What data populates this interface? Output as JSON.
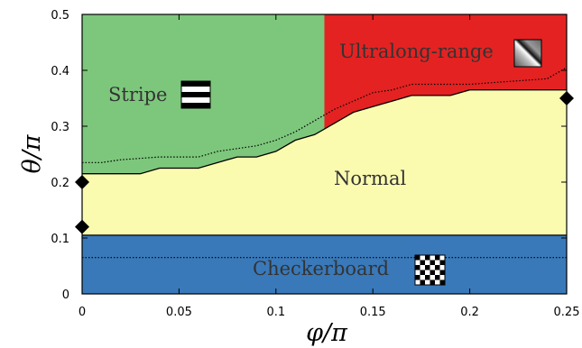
{
  "chart_data": {
    "type": "area",
    "xlabel": "φ/π",
    "ylabel": "θ/π",
    "xlim": [
      0,
      0.25
    ],
    "ylim": [
      0,
      0.5
    ],
    "x_ticks": [
      "0",
      "0.05",
      "0.1",
      "0.15",
      "0.2",
      "0.25"
    ],
    "y_ticks": [
      "0",
      "0.1",
      "0.2",
      "0.3",
      "0.4",
      "0.5"
    ],
    "x_tick_values": [
      0,
      0.05,
      0.1,
      0.15,
      0.2,
      0.25
    ],
    "y_tick_values": [
      0,
      0.1,
      0.2,
      0.3,
      0.4,
      0.5
    ],
    "grid": false,
    "colors": {
      "stripe": "#7dc77c",
      "ultralong": "#e42222",
      "normal": "#fbfbb0",
      "checkerboard": "#3979b9"
    },
    "regions": [
      {
        "label": "Stripe",
        "color_key": "stripe",
        "icon": "stripe-pattern-icon"
      },
      {
        "label": "Ultralong-range",
        "color_key": "ultralong",
        "icon": "diagonal-gradient-icon"
      },
      {
        "label": "Normal",
        "color_key": "normal"
      },
      {
        "label": "Checkerboard",
        "color_key": "checkerboard",
        "icon": "checkerboard-icon"
      }
    ],
    "checkerboard_boundary": 0.105,
    "stripe_ultralong_boundary_x": 0.125,
    "normal_upper_boundary": {
      "x": [
        0,
        0.03,
        0.04,
        0.06,
        0.08,
        0.09,
        0.1,
        0.11,
        0.12,
        0.13,
        0.14,
        0.15,
        0.16,
        0.17,
        0.19,
        0.2,
        0.25
      ],
      "y": [
        0.215,
        0.215,
        0.225,
        0.225,
        0.245,
        0.245,
        0.255,
        0.275,
        0.285,
        0.305,
        0.325,
        0.335,
        0.345,
        0.355,
        0.355,
        0.365,
        0.365
      ]
    },
    "dotted_upper": {
      "x": [
        0,
        0.01,
        0.02,
        0.04,
        0.06,
        0.07,
        0.09,
        0.1,
        0.11,
        0.12,
        0.13,
        0.14,
        0.15,
        0.16,
        0.17,
        0.2,
        0.24,
        0.25
      ],
      "y": [
        0.235,
        0.235,
        0.24,
        0.245,
        0.245,
        0.255,
        0.265,
        0.275,
        0.29,
        0.31,
        0.33,
        0.345,
        0.36,
        0.365,
        0.375,
        0.375,
        0.385,
        0.405
      ]
    },
    "dotted_lower": {
      "x": [
        0,
        0.25
      ],
      "y": [
        0.065,
        0.065
      ]
    },
    "markers": [
      {
        "x": 0,
        "y": 0.2
      },
      {
        "x": 0,
        "y": 0.12
      },
      {
        "x": 0.25,
        "y": 0.35
      }
    ]
  }
}
